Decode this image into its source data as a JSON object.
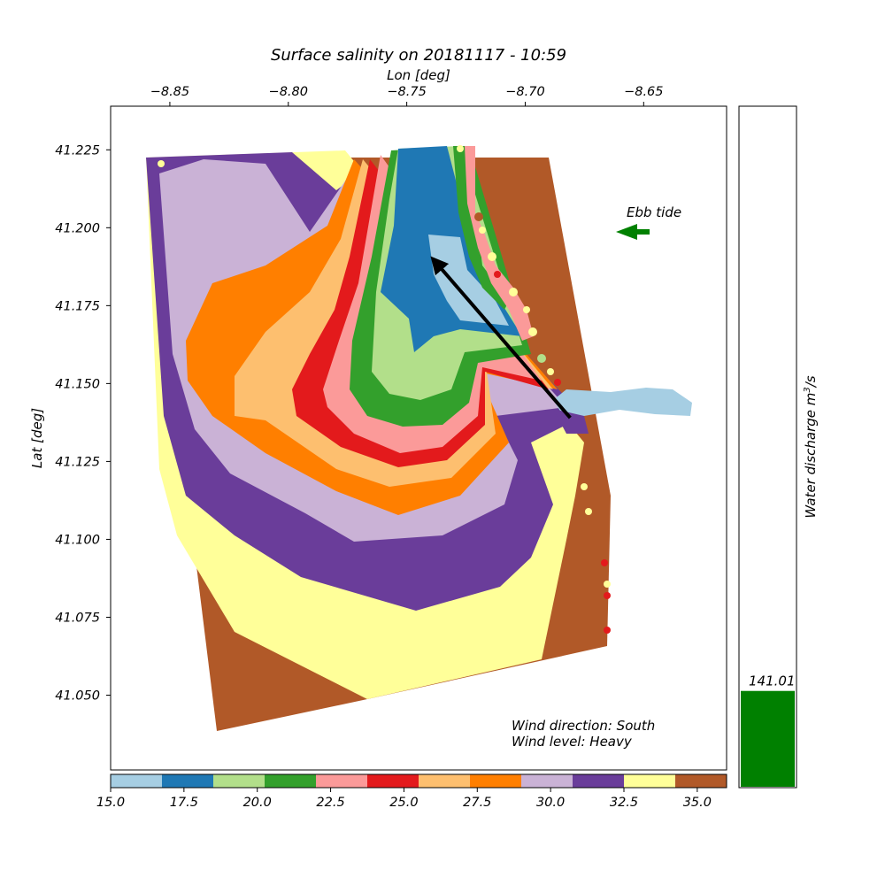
{
  "chart_data": [
    {
      "type": "heatmap",
      "title": "Surface salinity on 20181117 - 10:59",
      "xlabel": "Lon [deg]",
      "ylabel": "Lat [deg]",
      "xlim": [
        -8.875,
        -8.615
      ],
      "ylim": [
        41.026,
        41.239
      ],
      "x_ticks": [
        -8.85,
        -8.8,
        -8.75,
        -8.7,
        -8.65
      ],
      "x_tick_labels": [
        "−8.85",
        "−8.80",
        "−8.75",
        "−8.70",
        "−8.65"
      ],
      "y_ticks": [
        41.225,
        41.2,
        41.175,
        41.15,
        41.125,
        41.1,
        41.075,
        41.05
      ],
      "y_tick_labels": [
        "41.225",
        "41.200",
        "41.175",
        "41.150",
        "41.125",
        "41.100",
        "41.075",
        "41.050"
      ],
      "x_axis_position": "top",
      "colorbar": {
        "orientation": "horizontal",
        "min": 15.0,
        "max": 36.0,
        "tick_values": [
          15,
          17.5,
          20,
          22.5,
          25,
          27.5,
          30,
          32.5,
          35
        ],
        "tick_labels": [
          "15.0",
          "17.5",
          "20.0",
          "22.5",
          "25.0",
          "27.5",
          "30.0",
          "32.5",
          "35.0"
        ],
        "bins": [
          {
            "from": 15.0,
            "to": 16.75,
            "color": "#a6cee3"
          },
          {
            "from": 16.75,
            "to": 18.5,
            "color": "#1f78b4"
          },
          {
            "from": 18.5,
            "to": 20.25,
            "color": "#b2df8a"
          },
          {
            "from": 20.25,
            "to": 22.0,
            "color": "#33a02c"
          },
          {
            "from": 22.0,
            "to": 23.75,
            "color": "#fb9a99"
          },
          {
            "from": 23.75,
            "to": 25.5,
            "color": "#e31a1c"
          },
          {
            "from": 25.5,
            "to": 27.25,
            "color": "#fdbf6f"
          },
          {
            "from": 27.25,
            "to": 29.0,
            "color": "#ff7f00"
          },
          {
            "from": 29.0,
            "to": 30.75,
            "color": "#cab2d6"
          },
          {
            "from": 30.75,
            "to": 32.5,
            "color": "#6a3d9a"
          },
          {
            "from": 32.5,
            "to": 34.25,
            "color": "#ffff99"
          },
          {
            "from": 34.25,
            "to": 36.0,
            "color": "#b15928"
          }
        ]
      },
      "annotations": [
        {
          "text": "Ebb tide",
          "arrow_direction": "west",
          "color": "#008000"
        },
        {
          "text": "Wind direction: South"
        },
        {
          "text": "Wind level: Heavy"
        }
      ],
      "plume_arrow": {
        "from": [
          -8.681,
          41.139
        ],
        "to": [
          -8.739,
          41.19
        ],
        "color": "#000000"
      }
    },
    {
      "type": "bar",
      "ylabel": "Water discharge m³/s",
      "values": [
        141.01
      ],
      "value_labels": [
        "141.01"
      ],
      "color": "#008000",
      "ylim": [
        0,
        1000
      ]
    }
  ]
}
